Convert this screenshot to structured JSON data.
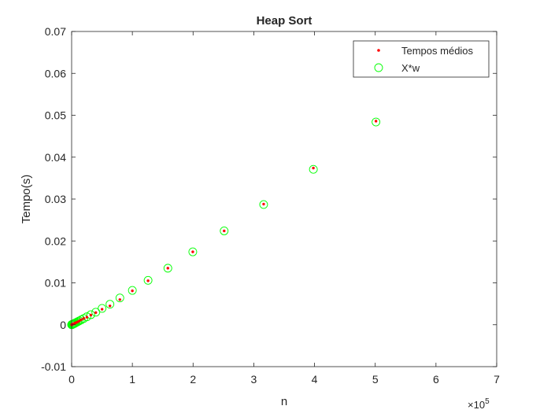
{
  "chart_data": {
    "type": "scatter",
    "title": "Heap Sort",
    "xlabel": "n",
    "ylabel": "Tempo(s)",
    "x_exponent_label": "×10",
    "x_exponent": "5",
    "xlim": [
      0,
      7
    ],
    "ylim": [
      -0.01,
      0.07
    ],
    "x_ticks": [
      0,
      1,
      2,
      3,
      4,
      5,
      6,
      7
    ],
    "x_tick_labels": [
      "0",
      "1",
      "2",
      "3",
      "4",
      "5",
      "6",
      "7"
    ],
    "y_ticks": [
      -0.01,
      0,
      0.01,
      0.02,
      0.03,
      0.04,
      0.05,
      0.06,
      0.07
    ],
    "y_tick_labels": [
      "-0.01",
      "0",
      "0.01",
      "0.02",
      "0.03",
      "0.04",
      "0.05",
      "0.06",
      "0.07"
    ],
    "grid": false,
    "legend_position": "top-right",
    "series": [
      {
        "name": "Tempos médios",
        "marker": "dot",
        "color": "#ff0000",
        "x": [
          0.001,
          0.0013,
          0.0016,
          0.002,
          0.0025,
          0.0032,
          0.004,
          0.005,
          0.0063,
          0.0079,
          0.01,
          0.0126,
          0.0158,
          0.02,
          0.0251,
          0.0316,
          0.0398,
          0.0501,
          0.0631,
          0.0794,
          0.1,
          0.1259,
          0.1585,
          0.1995,
          0.2512,
          0.3162,
          0.3981,
          0.5012,
          0.631,
          0.7943,
          1.0,
          1.2589,
          1.5849,
          1.9953,
          2.5119,
          3.1623,
          3.9811,
          5.0119
        ],
        "y": [
          1e-05,
          1e-05,
          2e-05,
          2e-05,
          2e-05,
          3e-05,
          3e-05,
          4e-05,
          5e-05,
          6e-05,
          8e-05,
          9e-05,
          0.00011,
          0.00014,
          0.00017,
          0.00022,
          0.00027,
          0.00033,
          0.00045,
          0.00055,
          0.0007,
          0.0009,
          0.0012,
          0.0015,
          0.0018,
          0.0023,
          0.0029,
          0.0037,
          0.0045,
          0.006,
          0.0081,
          0.0105,
          0.0135,
          0.0174,
          0.0224,
          0.0288,
          0.0374,
          0.0486
        ]
      },
      {
        "name": "X*w",
        "marker": "circle",
        "color": "#00ff00",
        "x": [
          0.001,
          0.0013,
          0.0016,
          0.002,
          0.0025,
          0.0032,
          0.004,
          0.005,
          0.0063,
          0.0079,
          0.01,
          0.0126,
          0.0158,
          0.02,
          0.0251,
          0.0316,
          0.0398,
          0.0501,
          0.0631,
          0.0794,
          0.1,
          0.1259,
          0.1585,
          0.1995,
          0.2512,
          0.3162,
          0.3981,
          0.5012,
          0.631,
          0.7943,
          1.0,
          1.2589,
          1.5849,
          1.9953,
          2.5119,
          3.1623,
          3.9811,
          5.0119
        ],
        "y": [
          1e-05,
          1e-05,
          2e-05,
          2e-05,
          2e-05,
          3e-05,
          3e-05,
          4e-05,
          5e-05,
          6e-05,
          8e-05,
          9e-05,
          0.00011,
          0.00014,
          0.00017,
          0.00022,
          0.00027,
          0.00033,
          0.00045,
          0.00058,
          0.00073,
          0.00093,
          0.00118,
          0.0015,
          0.0019,
          0.0024,
          0.003,
          0.0039,
          0.0049,
          0.0064,
          0.0082,
          0.0106,
          0.0135,
          0.0174,
          0.0224,
          0.0287,
          0.0371,
          0.0484
        ]
      }
    ]
  }
}
